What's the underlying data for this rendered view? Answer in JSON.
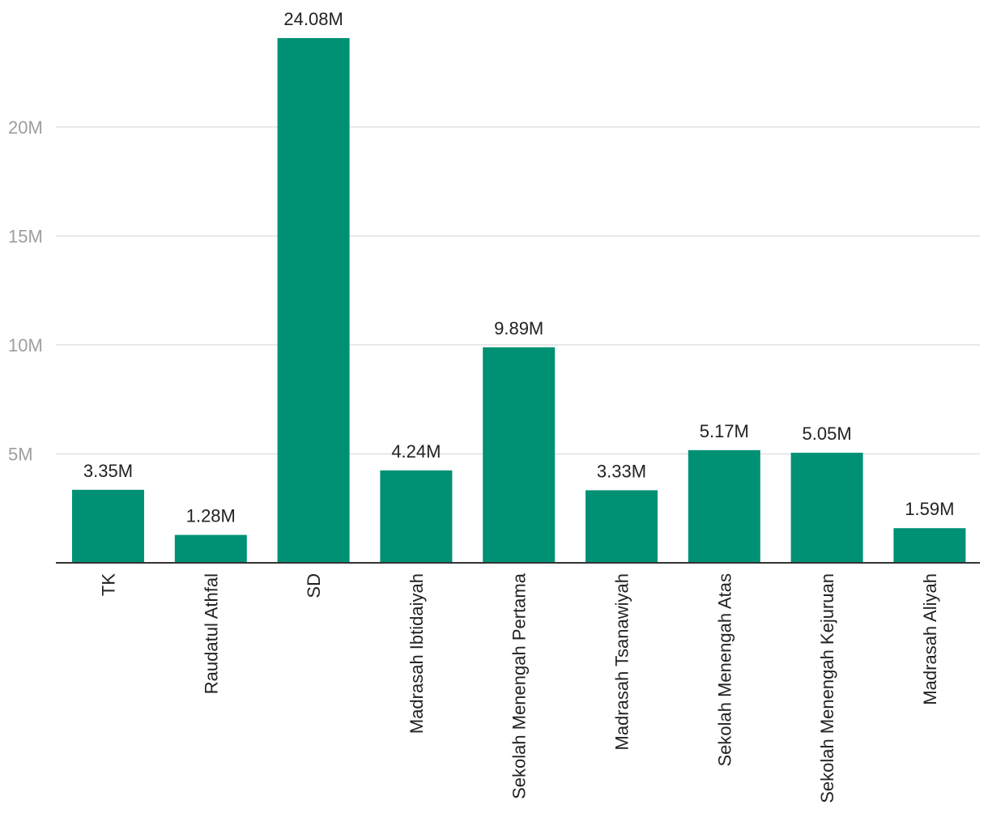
{
  "chart_data": {
    "type": "bar",
    "title": "",
    "xlabel": "",
    "ylabel": "",
    "categories": [
      "TK",
      "Raudatul Athfal",
      "SD",
      "Madrasah Ibtidaiyah",
      "Sekolah Menengah Pertama",
      "Madrasah Tsanawiyah",
      "Sekolah Menengah Atas",
      "Sekolah Menengah Kejuruan",
      "Madrasah Aliyah"
    ],
    "values": [
      3.35,
      1.28,
      24.08,
      4.24,
      9.89,
      3.33,
      5.17,
      5.05,
      1.59
    ],
    "value_labels": [
      "3.35M",
      "1.28M",
      "24.08M",
      "4.24M",
      "9.89M",
      "3.33M",
      "5.17M",
      "5.05M",
      "1.59M"
    ],
    "unit": "M",
    "ylim": [
      0,
      24.08
    ],
    "yticks": [
      5,
      10,
      15,
      20
    ],
    "ytick_labels": [
      "5M",
      "10M",
      "15M",
      "20M"
    ],
    "grid": true,
    "legend": "none",
    "bar_color": "#009175",
    "grid_color": "#e0e0e0",
    "axis_color": "#333333"
  }
}
